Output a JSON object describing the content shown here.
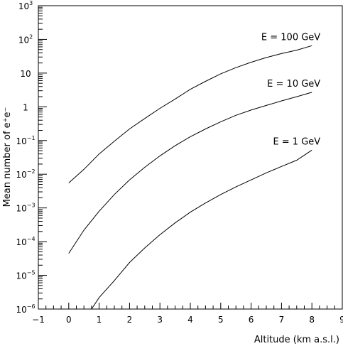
{
  "chart_data": {
    "type": "line",
    "xlabel": "Altitude (km a.s.l.)",
    "ylabel": "Mean number of e⁺e⁻",
    "xlim": [
      -1,
      9
    ],
    "ylim": [
      1e-06,
      1000
    ],
    "yscale": "log",
    "grid": false,
    "legend": "none",
    "x_ticks": [
      -1,
      0,
      1,
      2,
      3,
      4,
      5,
      6,
      7,
      8,
      9
    ],
    "x_tick_labels": [
      "−1",
      "0",
      "1",
      "2",
      "3",
      "4",
      "5",
      "6",
      "7",
      "8",
      "9"
    ],
    "y_ticks": [
      {
        "value": 1e-06,
        "base": "10",
        "exp": "−6"
      },
      {
        "value": 1e-05,
        "base": "10",
        "exp": "−5"
      },
      {
        "value": 0.0001,
        "base": "10",
        "exp": "−4"
      },
      {
        "value": 0.001,
        "base": "10",
        "exp": "−3"
      },
      {
        "value": 0.01,
        "base": "10",
        "exp": "−2"
      },
      {
        "value": 0.1,
        "base": "10",
        "exp": "−1"
      },
      {
        "value": 1,
        "base": "1",
        "exp": ""
      },
      {
        "value": 10,
        "base": "10",
        "exp": ""
      },
      {
        "value": 100,
        "base": "10",
        "exp": "2"
      },
      {
        "value": 1000,
        "base": "10",
        "exp": "3"
      }
    ],
    "series": [
      {
        "name": "E = 100 GeV",
        "x": [
          0,
          0.5,
          1,
          1.5,
          2,
          2.5,
          3,
          3.5,
          4,
          4.5,
          5,
          5.5,
          6,
          6.5,
          7,
          7.5,
          8
        ],
        "y": [
          0.0055,
          0.014,
          0.04,
          0.095,
          0.22,
          0.45,
          0.9,
          1.7,
          3.3,
          5.7,
          9.5,
          14.5,
          21,
          29,
          38,
          48,
          65
        ]
      },
      {
        "name": "E = 10 GeV",
        "x": [
          0,
          0.5,
          1,
          1.5,
          2,
          2.5,
          3,
          3.5,
          4,
          4.5,
          5,
          5.5,
          6,
          6.5,
          7,
          7.5,
          8
        ],
        "y": [
          4.5e-05,
          0.00022,
          0.0008,
          0.0025,
          0.0068,
          0.016,
          0.035,
          0.07,
          0.13,
          0.22,
          0.36,
          0.56,
          0.8,
          1.1,
          1.5,
          2.0,
          2.7
        ]
      },
      {
        "name": "E = 1 GeV",
        "x": [
          0.75,
          1,
          1.5,
          2,
          2.5,
          3,
          3.5,
          4,
          4.5,
          5,
          5.5,
          6,
          6.5,
          7,
          7.5,
          8
        ],
        "y": [
          1e-06,
          2.2e-06,
          7e-06,
          2.4e-05,
          6.5e-05,
          0.00016,
          0.00036,
          0.00075,
          0.0014,
          0.0025,
          0.0042,
          0.0068,
          0.011,
          0.017,
          0.026,
          0.052
        ]
      }
    ]
  }
}
